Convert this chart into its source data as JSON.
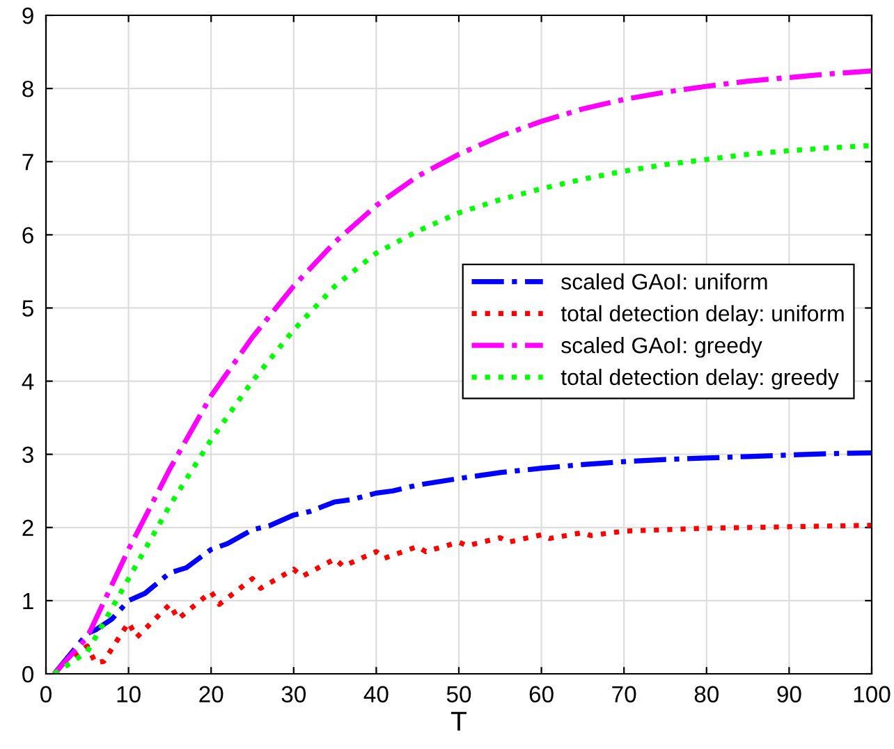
{
  "chart_data": {
    "type": "line",
    "xlabel": "T",
    "xlim": [
      0,
      100
    ],
    "ylim": [
      0,
      9
    ],
    "xticks": [
      0,
      10,
      20,
      30,
      40,
      50,
      60,
      70,
      80,
      90,
      100
    ],
    "yticks": [
      0,
      1,
      2,
      3,
      4,
      5,
      6,
      7,
      8,
      9
    ],
    "grid": true,
    "legend": "right",
    "marker": "none",
    "series": [
      {
        "name": "scaled GAoI: uniform",
        "color": "#0000ff",
        "line_style": "dashdot",
        "x": [
          1,
          5,
          6,
          8,
          10,
          12,
          15,
          17,
          20,
          22,
          25,
          27,
          30,
          32,
          35,
          37,
          40,
          42,
          45,
          50,
          55,
          60,
          65,
          70,
          75,
          80,
          85,
          90,
          95,
          100
        ],
        "values": [
          0,
          0.55,
          0.6,
          0.75,
          1.0,
          1.1,
          1.38,
          1.45,
          1.7,
          1.78,
          1.97,
          2.02,
          2.17,
          2.22,
          2.35,
          2.38,
          2.47,
          2.5,
          2.58,
          2.67,
          2.75,
          2.81,
          2.86,
          2.9,
          2.93,
          2.95,
          2.97,
          2.99,
          3.01,
          3.02
        ]
      },
      {
        "name": "total detection delay: uniform",
        "color": "#ff0000",
        "line_style": "dotted",
        "x": [
          1,
          3,
          5,
          6,
          7,
          10,
          11,
          15,
          16,
          20,
          21,
          25,
          26,
          30,
          31,
          35,
          36,
          40,
          41,
          45,
          46,
          50,
          51,
          55,
          56,
          60,
          61,
          65,
          66,
          70,
          75,
          80,
          85,
          90,
          95,
          100
        ],
        "values": [
          0,
          0.2,
          0.38,
          0.15,
          0.17,
          0.7,
          0.5,
          0.95,
          0.75,
          1.12,
          0.95,
          1.3,
          1.17,
          1.43,
          1.33,
          1.57,
          1.47,
          1.67,
          1.58,
          1.74,
          1.67,
          1.8,
          1.75,
          1.86,
          1.8,
          1.9,
          1.85,
          1.93,
          1.89,
          1.95,
          1.97,
          1.99,
          2.0,
          2.01,
          2.02,
          2.03
        ]
      },
      {
        "name": "scaled GAoI: greedy",
        "color": "#ff00ff",
        "line_style": "dashdot",
        "x": [
          1,
          5,
          10,
          15,
          20,
          25,
          30,
          35,
          40,
          45,
          50,
          55,
          60,
          65,
          70,
          75,
          80,
          85,
          90,
          95,
          100
        ],
        "values": [
          0,
          0.5,
          1.7,
          2.8,
          3.8,
          4.6,
          5.3,
          5.9,
          6.4,
          6.8,
          7.1,
          7.35,
          7.55,
          7.72,
          7.85,
          7.95,
          8.03,
          8.1,
          8.15,
          8.2,
          8.24
        ]
      },
      {
        "name": "total detection delay: greedy",
        "color": "#00ff00",
        "line_style": "dotted",
        "x": [
          1,
          5,
          10,
          15,
          20,
          25,
          30,
          35,
          40,
          45,
          50,
          55,
          60,
          65,
          70,
          75,
          80,
          85,
          90,
          95,
          100
        ],
        "values": [
          0,
          0.3,
          1.3,
          2.3,
          3.2,
          4.0,
          4.7,
          5.3,
          5.75,
          6.05,
          6.3,
          6.48,
          6.63,
          6.76,
          6.87,
          6.96,
          7.03,
          7.1,
          7.15,
          7.19,
          7.22
        ]
      }
    ]
  }
}
